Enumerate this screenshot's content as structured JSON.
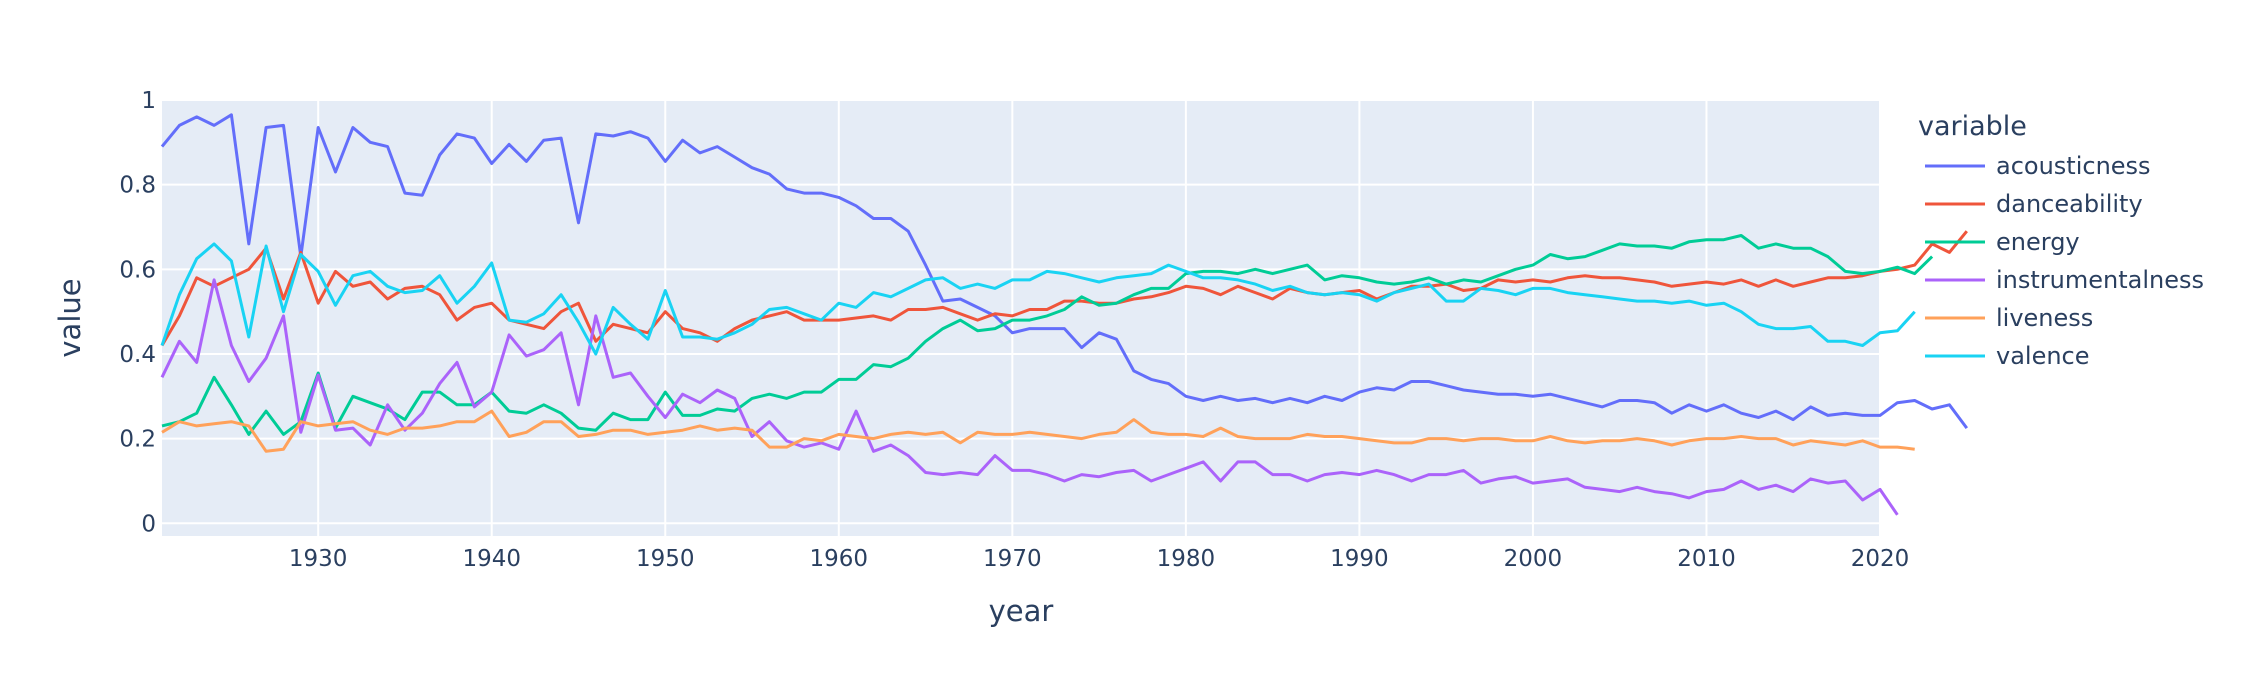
{
  "chart_data": {
    "type": "line",
    "xlabel": "year",
    "ylabel": "value",
    "xlim": [
      1921,
      2020
    ],
    "ylim": [
      -0.03,
      1.0
    ],
    "xticks": [
      1930,
      1940,
      1950,
      1960,
      1970,
      1980,
      1990,
      2000,
      2010,
      2020
    ],
    "yticks": [
      0,
      0.2,
      0.4,
      0.6,
      0.8,
      1
    ],
    "legend_title": "variable",
    "legend_position": "right",
    "grid": true,
    "plot_bg": "#e5ecf6",
    "grid_color": "#ffffff",
    "text_color": "#2a3f5f",
    "series": [
      {
        "name": "acousticness",
        "color": "#636efa",
        "x0": 1921,
        "values": [
          0.89,
          0.94,
          0.96,
          0.94,
          0.965,
          0.66,
          0.935,
          0.94,
          0.63,
          0.935,
          0.83,
          0.935,
          0.9,
          0.89,
          0.78,
          0.775,
          0.87,
          0.92,
          0.91,
          0.85,
          0.895,
          0.855,
          0.905,
          0.91,
          0.71,
          0.92,
          0.915,
          0.925,
          0.91,
          0.855,
          0.905,
          0.875,
          0.89,
          0.865,
          0.84,
          0.825,
          0.79,
          0.78,
          0.78,
          0.77,
          0.75,
          0.72,
          0.72,
          0.69,
          0.61,
          0.525,
          0.53,
          0.51,
          0.49,
          0.45,
          0.46,
          0.46,
          0.46,
          0.415,
          0.45,
          0.435,
          0.36,
          0.34,
          0.33,
          0.3,
          0.29,
          0.3,
          0.29,
          0.295,
          0.285,
          0.295,
          0.285,
          0.3,
          0.29,
          0.31,
          0.32,
          0.315,
          0.335,
          0.335,
          0.325,
          0.315,
          0.31,
          0.305,
          0.305,
          0.3,
          0.305,
          0.295,
          0.285,
          0.275,
          0.29,
          0.29,
          0.285,
          0.26,
          0.28,
          0.265,
          0.28,
          0.26,
          0.25,
          0.265,
          0.245,
          0.275,
          0.255,
          0.26,
          0.255,
          0.255,
          0.285,
          0.29,
          0.27,
          0.28,
          0.225
        ]
      },
      {
        "name": "danceability",
        "color": "#ef553b",
        "x0": 1921,
        "values": [
          0.42,
          0.49,
          0.58,
          0.56,
          0.58,
          0.6,
          0.65,
          0.53,
          0.64,
          0.52,
          0.595,
          0.56,
          0.57,
          0.53,
          0.555,
          0.56,
          0.54,
          0.48,
          0.51,
          0.52,
          0.48,
          0.47,
          0.46,
          0.5,
          0.52,
          0.43,
          0.47,
          0.46,
          0.45,
          0.5,
          0.46,
          0.45,
          0.43,
          0.46,
          0.48,
          0.49,
          0.5,
          0.48,
          0.48,
          0.48,
          0.485,
          0.49,
          0.48,
          0.505,
          0.505,
          0.51,
          0.495,
          0.48,
          0.495,
          0.49,
          0.505,
          0.505,
          0.525,
          0.525,
          0.52,
          0.52,
          0.53,
          0.535,
          0.545,
          0.56,
          0.555,
          0.54,
          0.56,
          0.545,
          0.53,
          0.555,
          0.545,
          0.54,
          0.545,
          0.55,
          0.53,
          0.545,
          0.56,
          0.56,
          0.565,
          0.55,
          0.555,
          0.575,
          0.57,
          0.575,
          0.57,
          0.58,
          0.585,
          0.58,
          0.58,
          0.575,
          0.57,
          0.56,
          0.565,
          0.57,
          0.565,
          0.575,
          0.56,
          0.575,
          0.56,
          0.57,
          0.58,
          0.58,
          0.585,
          0.595,
          0.6,
          0.61,
          0.66,
          0.64,
          0.69
        ]
      },
      {
        "name": "energy",
        "color": "#00cc96",
        "x0": 1921,
        "values": [
          0.23,
          0.24,
          0.26,
          0.345,
          0.28,
          0.21,
          0.265,
          0.21,
          0.24,
          0.355,
          0.225,
          0.3,
          0.285,
          0.27,
          0.245,
          0.31,
          0.31,
          0.28,
          0.28,
          0.31,
          0.265,
          0.26,
          0.28,
          0.26,
          0.225,
          0.22,
          0.26,
          0.245,
          0.245,
          0.31,
          0.255,
          0.255,
          0.27,
          0.265,
          0.295,
          0.305,
          0.295,
          0.31,
          0.31,
          0.34,
          0.34,
          0.375,
          0.37,
          0.39,
          0.43,
          0.46,
          0.48,
          0.455,
          0.46,
          0.48,
          0.48,
          0.49,
          0.505,
          0.535,
          0.515,
          0.52,
          0.54,
          0.555,
          0.555,
          0.59,
          0.595,
          0.595,
          0.59,
          0.6,
          0.59,
          0.6,
          0.61,
          0.575,
          0.585,
          0.58,
          0.57,
          0.565,
          0.57,
          0.58,
          0.565,
          0.575,
          0.57,
          0.585,
          0.6,
          0.61,
          0.635,
          0.625,
          0.63,
          0.645,
          0.66,
          0.655,
          0.655,
          0.65,
          0.665,
          0.67,
          0.67,
          0.68,
          0.65,
          0.66,
          0.65,
          0.65,
          0.63,
          0.595,
          0.59,
          0.595,
          0.605,
          0.59,
          0.63
        ]
      },
      {
        "name": "instrumentalness",
        "color": "#ab63fa",
        "x0": 1921,
        "values": [
          0.345,
          0.43,
          0.38,
          0.575,
          0.42,
          0.335,
          0.39,
          0.49,
          0.215,
          0.35,
          0.22,
          0.225,
          0.185,
          0.28,
          0.22,
          0.26,
          0.33,
          0.38,
          0.275,
          0.31,
          0.445,
          0.395,
          0.41,
          0.45,
          0.28,
          0.49,
          0.345,
          0.355,
          0.3,
          0.25,
          0.305,
          0.285,
          0.315,
          0.295,
          0.205,
          0.24,
          0.195,
          0.18,
          0.19,
          0.175,
          0.265,
          0.17,
          0.185,
          0.16,
          0.12,
          0.115,
          0.12,
          0.115,
          0.16,
          0.125,
          0.125,
          0.115,
          0.1,
          0.115,
          0.11,
          0.12,
          0.125,
          0.1,
          0.115,
          0.13,
          0.145,
          0.1,
          0.145,
          0.145,
          0.115,
          0.115,
          0.1,
          0.115,
          0.12,
          0.115,
          0.125,
          0.115,
          0.1,
          0.115,
          0.115,
          0.125,
          0.095,
          0.105,
          0.11,
          0.095,
          0.1,
          0.105,
          0.085,
          0.08,
          0.075,
          0.085,
          0.075,
          0.07,
          0.06,
          0.075,
          0.08,
          0.1,
          0.08,
          0.09,
          0.075,
          0.105,
          0.095,
          0.1,
          0.055,
          0.08,
          0.02
        ]
      },
      {
        "name": "liveness",
        "color": "#ffa15a",
        "x0": 1921,
        "values": [
          0.215,
          0.24,
          0.23,
          0.235,
          0.24,
          0.23,
          0.17,
          0.175,
          0.24,
          0.23,
          0.235,
          0.24,
          0.22,
          0.21,
          0.225,
          0.225,
          0.23,
          0.24,
          0.24,
          0.265,
          0.205,
          0.215,
          0.24,
          0.24,
          0.205,
          0.21,
          0.22,
          0.22,
          0.21,
          0.215,
          0.22,
          0.23,
          0.22,
          0.225,
          0.22,
          0.18,
          0.18,
          0.2,
          0.195,
          0.21,
          0.205,
          0.2,
          0.21,
          0.215,
          0.21,
          0.215,
          0.19,
          0.215,
          0.21,
          0.21,
          0.215,
          0.21,
          0.205,
          0.2,
          0.21,
          0.215,
          0.245,
          0.215,
          0.21,
          0.21,
          0.205,
          0.225,
          0.205,
          0.2,
          0.2,
          0.2,
          0.21,
          0.205,
          0.205,
          0.2,
          0.195,
          0.19,
          0.19,
          0.2,
          0.2,
          0.195,
          0.2,
          0.2,
          0.195,
          0.195,
          0.205,
          0.195,
          0.19,
          0.195,
          0.195,
          0.2,
          0.195,
          0.185,
          0.195,
          0.2,
          0.2,
          0.205,
          0.2,
          0.2,
          0.185,
          0.195,
          0.19,
          0.185,
          0.195,
          0.18,
          0.18,
          0.175
        ]
      },
      {
        "name": "valence",
        "color": "#19d3f3",
        "x0": 1921,
        "values": [
          0.42,
          0.54,
          0.625,
          0.66,
          0.62,
          0.44,
          0.655,
          0.5,
          0.635,
          0.595,
          0.515,
          0.585,
          0.595,
          0.56,
          0.545,
          0.55,
          0.585,
          0.52,
          0.56,
          0.615,
          0.48,
          0.475,
          0.495,
          0.54,
          0.475,
          0.4,
          0.51,
          0.47,
          0.435,
          0.55,
          0.44,
          0.44,
          0.435,
          0.45,
          0.47,
          0.505,
          0.51,
          0.495,
          0.48,
          0.52,
          0.51,
          0.545,
          0.535,
          0.555,
          0.575,
          0.58,
          0.555,
          0.565,
          0.555,
          0.575,
          0.575,
          0.595,
          0.59,
          0.58,
          0.57,
          0.58,
          0.585,
          0.59,
          0.61,
          0.595,
          0.58,
          0.58,
          0.575,
          0.565,
          0.55,
          0.56,
          0.545,
          0.54,
          0.545,
          0.54,
          0.525,
          0.545,
          0.555,
          0.565,
          0.525,
          0.525,
          0.555,
          0.55,
          0.54,
          0.555,
          0.555,
          0.545,
          0.54,
          0.535,
          0.53,
          0.525,
          0.525,
          0.52,
          0.525,
          0.515,
          0.52,
          0.5,
          0.47,
          0.46,
          0.46,
          0.465,
          0.43,
          0.43,
          0.42,
          0.45,
          0.455,
          0.5
        ]
      }
    ]
  }
}
